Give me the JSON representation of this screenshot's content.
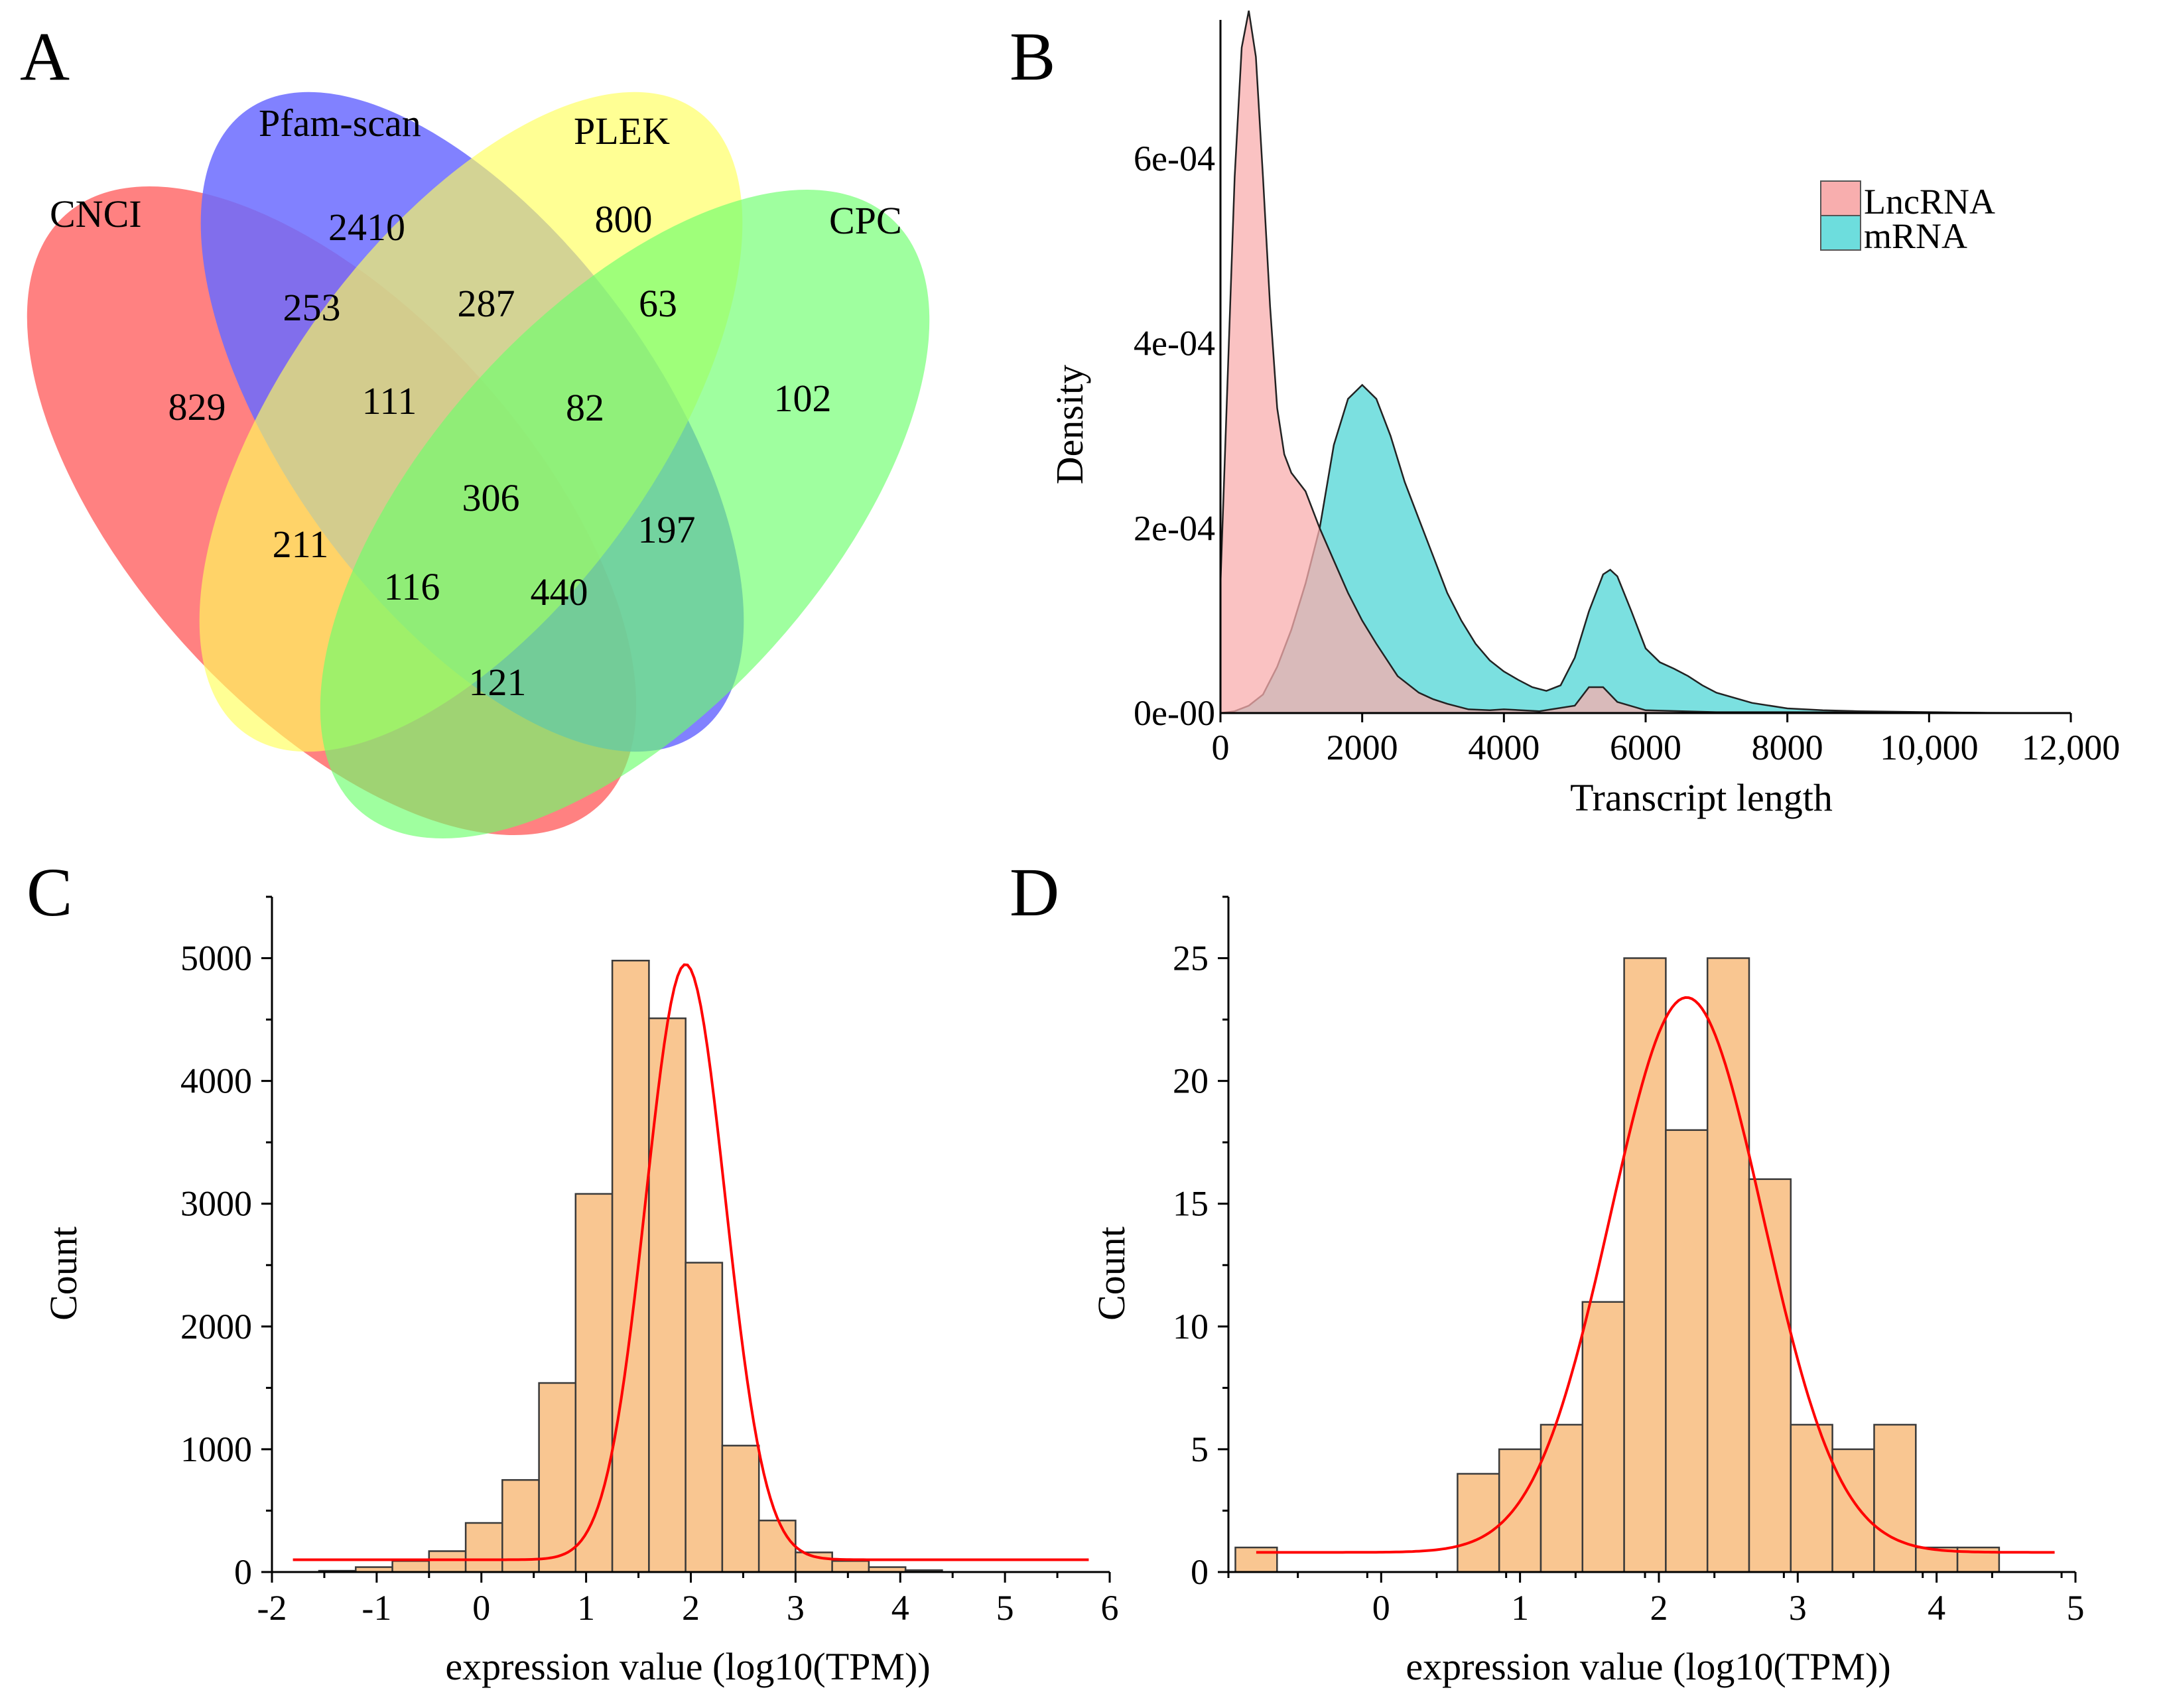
{
  "panels": {
    "a": "A",
    "b": "B",
    "c": "C",
    "d": "D"
  },
  "venn": {
    "sets": [
      "CNCI",
      "Pfam-scan",
      "PLEK",
      "CPC"
    ],
    "colors": [
      "#ff6b6b",
      "#6b6bff",
      "#ffff5a",
      "#6bff6b"
    ],
    "regions": [
      {
        "sets": "CNCI",
        "value": "829"
      },
      {
        "sets": "Pfam-scan",
        "value": "2410"
      },
      {
        "sets": "PLEK",
        "value": "800"
      },
      {
        "sets": "CPC",
        "value": "102"
      },
      {
        "sets": "CNCI&Pfam-scan",
        "value": "253"
      },
      {
        "sets": "Pfam-scan&PLEK",
        "value": "287"
      },
      {
        "sets": "PLEK&CPC",
        "value": "63"
      },
      {
        "sets": "CNCI&Pfam-scan&PLEK",
        "value": "111"
      },
      {
        "sets": "Pfam-scan&PLEK&CPC",
        "value": "82"
      },
      {
        "sets": "all",
        "value": "306"
      },
      {
        "sets": "CNCI&PLEK",
        "value": "211"
      },
      {
        "sets": "Pfam-scan&CPC",
        "value": "197"
      },
      {
        "sets": "CNCI&PLEK&CPC",
        "value": "116"
      },
      {
        "sets": "CNCI&Pfam-scan&CPC",
        "value": "440"
      },
      {
        "sets": "CNCI&CPC",
        "value": "121"
      }
    ]
  },
  "chart_data": [
    {
      "type": "area",
      "panel": "B",
      "xlabel": "Transcript length",
      "ylabel": "Density",
      "xlim": [
        0,
        12000
      ],
      "ylim": [
        0,
        0.00075
      ],
      "xticks": [
        "0",
        "2000",
        "4000",
        "6000",
        "8000",
        "10,000",
        "12,000"
      ],
      "xtick_values": [
        0,
        2000,
        4000,
        6000,
        8000,
        10000,
        12000
      ],
      "yticks": [
        "0e-00",
        "2e-04",
        "4e-04",
        "6e-04"
      ],
      "ytick_values": [
        0,
        0.0002,
        0.0004,
        0.0006
      ],
      "legend": {
        "position": "top-right"
      },
      "series": [
        {
          "name": "LncRNA",
          "color": "#f8aeae",
          "x": [
            0,
            100,
            200,
            300,
            400,
            500,
            600,
            700,
            800,
            900,
            1000,
            1200,
            1400,
            1600,
            1800,
            2000,
            2200,
            2500,
            2800,
            3000,
            3200,
            3500,
            3800,
            4000,
            4500,
            5000,
            5200,
            5400,
            5600,
            6000,
            7000,
            8000,
            12000
          ],
          "y": [
            0.00014,
            0.00036,
            0.00058,
            0.00072,
            0.00076,
            0.00071,
            0.00058,
            0.00044,
            0.00033,
            0.00028,
            0.00026,
            0.00024,
            0.0002,
            0.000165,
            0.00013,
            0.0001,
            7.5e-05,
            4e-05,
            2.2e-05,
            1.5e-05,
            1e-05,
            4e-06,
            3e-06,
            4e-06,
            2e-06,
            8e-06,
            2.8e-05,
            2.8e-05,
            1.2e-05,
            3e-06,
            1e-06,
            1e-06,
            0
          ]
        },
        {
          "name": "mRNA",
          "color": "#6ddddd",
          "x": [
            0,
            200,
            400,
            600,
            800,
            1000,
            1200,
            1400,
            1600,
            1800,
            2000,
            2200,
            2400,
            2600,
            2800,
            3000,
            3200,
            3400,
            3600,
            3800,
            4000,
            4200,
            4400,
            4600,
            4800,
            5000,
            5200,
            5400,
            5500,
            5600,
            5800,
            6000,
            6200,
            6400,
            6600,
            6800,
            7000,
            7500,
            8000,
            8500,
            9000,
            10000,
            11000,
            12000
          ],
          "y": [
            0,
            2e-06,
            8e-06,
            2e-05,
            5e-05,
            9e-05,
            0.00014,
            0.0002,
            0.00029,
            0.00034,
            0.000355,
            0.00034,
            0.0003,
            0.00025,
            0.00021,
            0.00017,
            0.00013,
            0.0001,
            7.5e-05,
            5.7e-05,
            4.5e-05,
            3.6e-05,
            2.8e-05,
            2.4e-05,
            3e-05,
            6e-05,
            0.00011,
            0.00015,
            0.000155,
            0.000148,
            0.00011,
            7e-05,
            5.5e-05,
            4.8e-05,
            4e-05,
            3e-05,
            2.2e-05,
            1.1e-05,
            5e-06,
            3e-06,
            2e-06,
            1e-06,
            0,
            0
          ]
        }
      ]
    },
    {
      "type": "bar",
      "panel": "C",
      "xlabel": "expression value (log10(TPM))",
      "ylabel": "Count",
      "xlim": [
        -2,
        6
      ],
      "ylim": [
        0,
        5500
      ],
      "xticks": [
        "-2",
        "-1",
        "0",
        "1",
        "2",
        "3",
        "4",
        "5",
        "6"
      ],
      "xtick_values": [
        -2,
        -1,
        0,
        1,
        2,
        3,
        4,
        5,
        6
      ],
      "yticks": [
        "0",
        "1000",
        "2000",
        "3000",
        "4000",
        "5000"
      ],
      "ytick_values": [
        0,
        1000,
        2000,
        3000,
        4000,
        5000
      ],
      "bin_width": 0.35,
      "bin_starts": [
        -1.55,
        -1.2,
        -0.85,
        -0.5,
        -0.15,
        0.2,
        0.55,
        0.9,
        1.25,
        1.6,
        1.95,
        2.3,
        2.65,
        3.0,
        3.35,
        3.7,
        4.05,
        4.4,
        4.75
      ],
      "values": [
        10,
        40,
        90,
        170,
        400,
        750,
        1540,
        3080,
        4980,
        4510,
        2520,
        1030,
        420,
        160,
        90,
        40,
        15,
        0,
        0
      ],
      "fit": {
        "type": "gaussian",
        "color": "#ff0000",
        "baseline": 100,
        "peak": 4950,
        "mean": 1.95,
        "sd": 0.38,
        "x_range": [
          -1.8,
          5.8
        ]
      }
    },
    {
      "type": "bar",
      "panel": "D",
      "xlabel": "expression value (log10(TPM))",
      "ylabel": "Count",
      "xlim": [
        -1.1,
        5
      ],
      "ylim": [
        0,
        27.5
      ],
      "xticks": [
        "0",
        "1",
        "2",
        "3",
        "4",
        "5"
      ],
      "xtick_values": [
        0,
        1,
        2,
        3,
        4,
        5
      ],
      "yticks": [
        "0",
        "5",
        "10",
        "15",
        "20",
        "25"
      ],
      "ytick_values": [
        0,
        5,
        10,
        15,
        20,
        25
      ],
      "bin_width": 0.3,
      "bin_starts": [
        -1.05,
        0.55,
        0.85,
        1.15,
        1.45,
        1.75,
        2.05,
        2.35,
        2.65,
        2.95,
        3.25,
        3.55,
        3.85,
        4.15
      ],
      "values": [
        1,
        4,
        5,
        6,
        11,
        25,
        18,
        25,
        16,
        6,
        5,
        6,
        1,
        1
      ],
      "fit": {
        "type": "gaussian",
        "color": "#ff0000",
        "baseline": 0.8,
        "peak": 23.4,
        "mean": 2.2,
        "sd": 0.55,
        "x_range": [
          -0.9,
          4.85
        ]
      }
    }
  ]
}
